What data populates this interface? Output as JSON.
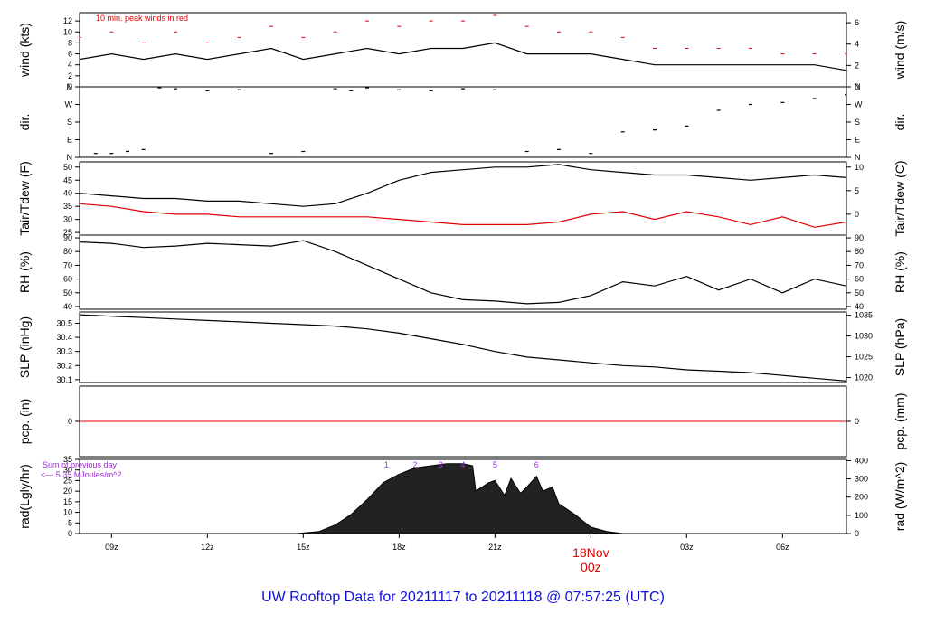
{
  "footer_title": "UW Rooftop Data for 20211117  to  20211118 @ 07:57:25  (UTC)",
  "x_ticks": [
    {
      "hour": 9,
      "label": "09z"
    },
    {
      "hour": 12,
      "label": "12z"
    },
    {
      "hour": 15,
      "label": "15z"
    },
    {
      "hour": 18,
      "label": "18z"
    },
    {
      "hour": 21,
      "label": "21z"
    },
    {
      "hour": 27,
      "label": "03z"
    },
    {
      "hour": 30,
      "label": "06z"
    }
  ],
  "day_marker": {
    "hour": 24,
    "line1": "18Nov",
    "line2": "00z"
  },
  "colors": {
    "primary": "#000000",
    "red": "#e00000",
    "purple": "#9a2ed1",
    "footer": "#1010e0"
  },
  "chart_data": [
    {
      "id": "wind",
      "type": "line",
      "ylabel_left": "wind (kts)",
      "ylabel_right": "wind (m/s)",
      "left_ticks": [
        "0",
        "2",
        "4",
        "6",
        "8",
        "10",
        "12"
      ],
      "left_ylim": [
        0,
        13.5
      ],
      "right_ticks": [
        "0",
        "2",
        "4",
        "6"
      ],
      "right_ylim": [
        0,
        6.94
      ],
      "annotation": "10 min. peak winds in red",
      "x": [
        8.0,
        9.0,
        10.0,
        11.0,
        12.0,
        13.0,
        14.0,
        15.0,
        16.0,
        17.0,
        18.0,
        19.0,
        20.0,
        21.0,
        22.0,
        23.0,
        24.0,
        25.0,
        26.0,
        27.0,
        28.0,
        29.0,
        30.0,
        31.0,
        32.0
      ],
      "series": [
        {
          "values": [
            5,
            6,
            5,
            6,
            5,
            6,
            7,
            5,
            6,
            7,
            6,
            7,
            7,
            8,
            6,
            6,
            6,
            5,
            4,
            4,
            4,
            4,
            4,
            4,
            3
          ]
        },
        {
          "values": [
            9,
            10,
            8,
            10,
            8,
            9,
            11,
            9,
            10,
            12,
            11,
            12,
            12,
            13,
            11,
            10,
            10,
            9,
            7,
            7,
            7,
            7,
            6,
            6,
            6
          ]
        }
      ]
    },
    {
      "id": "dir",
      "type": "scatter",
      "ylabel_left": "dir.",
      "ylabel_right": "dir.",
      "left_ticks": [
        "N",
        "E",
        "S",
        "W",
        "N"
      ],
      "right_ticks": [
        "N",
        "E",
        "S",
        "W",
        "N"
      ],
      "ylim": [
        0,
        360
      ],
      "x": [
        8.5,
        9.0,
        9.5,
        10.0,
        10.5,
        11.0,
        12.0,
        13.0,
        14.0,
        15.0,
        16.0,
        16.5,
        17.0,
        18.0,
        19.0,
        20.0,
        21.0,
        22.0,
        23.0,
        24.0,
        25.0,
        26.0,
        27.0,
        28.0,
        29.0,
        30.0,
        31.0,
        32.0
      ],
      "y": [
        20,
        20,
        30,
        40,
        355,
        350,
        340,
        345,
        20,
        30,
        350,
        340,
        355,
        345,
        340,
        350,
        345,
        30,
        40,
        20,
        130,
        140,
        160,
        240,
        270,
        280,
        300,
        320
      ]
    },
    {
      "id": "temp",
      "type": "line",
      "ylabel_left": "Tair/Tdew (F)",
      "ylabel_right": "Tair/Tdew (C)",
      "left_ticks": [
        "25",
        "30",
        "35",
        "40",
        "45",
        "50"
      ],
      "left_ylim": [
        24,
        52
      ],
      "right_ticks": [
        "0",
        "5",
        "10"
      ],
      "right_ylim": [
        -4.44,
        11.11
      ],
      "x": [
        8.0,
        9.0,
        10.0,
        11.0,
        12.0,
        13.0,
        14.0,
        15.0,
        16.0,
        17.0,
        18.0,
        19.0,
        20.0,
        21.0,
        22.0,
        23.0,
        24.0,
        25.0,
        26.0,
        27.0,
        28.0,
        29.0,
        30.0,
        31.0,
        32.0
      ],
      "series": [
        {
          "values": [
            40,
            39,
            38,
            38,
            37,
            37,
            36,
            35,
            36,
            40,
            45,
            48,
            49,
            50,
            50,
            51,
            49,
            48,
            47,
            47,
            46,
            45,
            46,
            47,
            46
          ]
        },
        {
          "values": [
            36,
            35,
            33,
            32,
            32,
            31,
            31,
            31,
            31,
            31,
            30,
            29,
            28,
            28,
            28,
            29,
            32,
            33,
            30,
            33,
            31,
            28,
            31,
            27,
            29
          ]
        }
      ]
    },
    {
      "id": "rh",
      "type": "line",
      "ylabel_left": "RH (%)",
      "ylabel_right": "RH (%)",
      "left_ticks": [
        "40",
        "50",
        "60",
        "70",
        "80",
        "90"
      ],
      "left_ylim": [
        38,
        92
      ],
      "right_ticks": [
        "40",
        "50",
        "60",
        "70",
        "80",
        "90"
      ],
      "right_ylim": [
        38,
        92
      ],
      "x": [
        8.0,
        9.0,
        10.0,
        11.0,
        12.0,
        13.0,
        14.0,
        15.0,
        16.0,
        17.0,
        18.0,
        19.0,
        20.0,
        21.0,
        22.0,
        23.0,
        24.0,
        25.0,
        26.0,
        27.0,
        28.0,
        29.0,
        30.0,
        31.0,
        32.0
      ],
      "series": [
        {
          "values": [
            87,
            86,
            83,
            84,
            86,
            85,
            84,
            88,
            80,
            70,
            60,
            50,
            45,
            44,
            42,
            43,
            48,
            58,
            55,
            62,
            52,
            60,
            50,
            60,
            55
          ]
        }
      ]
    },
    {
      "id": "slp",
      "type": "line",
      "ylabel_left": "SLP (inHg)",
      "ylabel_right": "SLP (hPa)",
      "left_ticks": [
        "30.1",
        "30.2",
        "30.3",
        "30.4",
        "30.5"
      ],
      "left_ylim": [
        30.08,
        30.58
      ],
      "right_ticks": [
        "1020",
        "1025",
        "1030",
        "1035"
      ],
      "right_ylim": [
        1018.8,
        1035.8
      ],
      "x": [
        8.0,
        9.0,
        10.0,
        11.0,
        12.0,
        13.0,
        14.0,
        15.0,
        16.0,
        17.0,
        18.0,
        19.0,
        20.0,
        21.0,
        22.0,
        23.0,
        24.0,
        25.0,
        26.0,
        27.0,
        28.0,
        29.0,
        30.0,
        31.0,
        32.0
      ],
      "series": [
        {
          "values": [
            30.56,
            30.55,
            30.54,
            30.53,
            30.52,
            30.51,
            30.5,
            30.49,
            30.48,
            30.46,
            30.43,
            30.39,
            30.35,
            30.3,
            30.26,
            30.24,
            30.22,
            30.2,
            30.19,
            30.17,
            30.16,
            30.15,
            30.13,
            30.11,
            30.09
          ]
        }
      ]
    },
    {
      "id": "pcp",
      "type": "line",
      "ylabel_left": "pcp. (in)",
      "ylabel_right": "pcp. (mm)",
      "left_ticks": [
        "0"
      ],
      "right_ticks": [
        "0"
      ],
      "ylim": [
        -1,
        1
      ],
      "x": [
        8.0,
        32.0
      ],
      "series": [
        {
          "values": [
            0,
            0
          ]
        }
      ]
    },
    {
      "id": "rad",
      "type": "area",
      "ylabel_left": "rad(Lgly/hr)",
      "ylabel_right": "rad (W/m^2)",
      "left_ticks": [
        "0",
        "5",
        "10",
        "15",
        "20",
        "25",
        "30",
        "35"
      ],
      "left_ylim": [
        0,
        35
      ],
      "right_ticks": [
        "0",
        "100",
        "200",
        "300",
        "400"
      ],
      "right_ylim": [
        0,
        407
      ],
      "annotation_line1": "Sum of previous day",
      "annotation_line2": "<--- 5.35 MJoules/m^2",
      "hour_markers": [
        {
          "hour": 17.6,
          "label": "1"
        },
        {
          "hour": 18.5,
          "label": "2"
        },
        {
          "hour": 19.3,
          "label": "3"
        },
        {
          "hour": 20.0,
          "label": "4"
        },
        {
          "hour": 21.0,
          "label": "5"
        },
        {
          "hour": 22.3,
          "label": "6"
        }
      ],
      "x": [
        14.8,
        15.5,
        16.0,
        16.5,
        17.0,
        17.5,
        18.0,
        18.5,
        19.0,
        19.5,
        20.0,
        20.3,
        20.4,
        20.8,
        21.0,
        21.3,
        21.5,
        21.8,
        22.0,
        22.3,
        22.5,
        22.8,
        23.0,
        23.5,
        24.0,
        24.5,
        25.0
      ],
      "series": [
        {
          "values": [
            0,
            1,
            4,
            9,
            16,
            24,
            28,
            31,
            32,
            33,
            33,
            32,
            20,
            24,
            25,
            18,
            26,
            19,
            22,
            27,
            20,
            22,
            14,
            9,
            3,
            1,
            0
          ]
        }
      ]
    }
  ]
}
